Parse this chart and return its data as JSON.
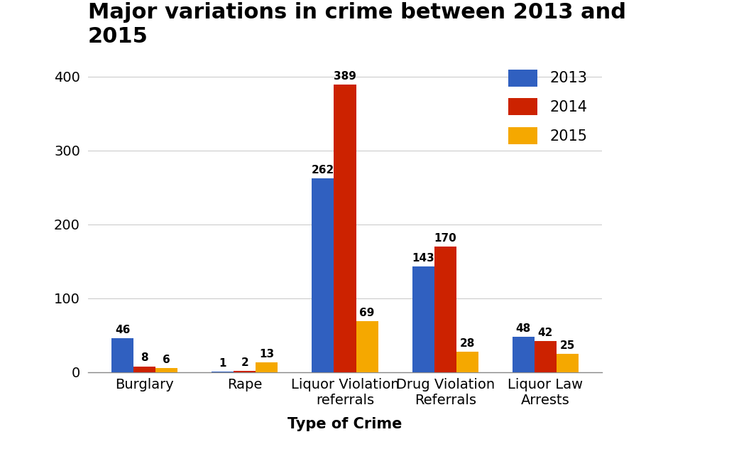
{
  "title": "Major variations in crime between 2013 and\n2015",
  "categories": [
    "Burglary",
    "Rape",
    "Liquor Violation\nreferrals",
    "Drug Violation\nReferrals",
    "Liquor Law\nArrests"
  ],
  "series": {
    "2013": [
      46,
      1,
      262,
      143,
      48
    ],
    "2014": [
      8,
      2,
      389,
      170,
      42
    ],
    "2015": [
      6,
      13,
      69,
      28,
      25
    ]
  },
  "colors": {
    "2013": "#3060c0",
    "2014": "#cc2200",
    "2015": "#f5a800"
  },
  "xlabel": "Type of Crime",
  "ylabel": "",
  "ylim": [
    0,
    430
  ],
  "yticks": [
    0,
    100,
    200,
    300,
    400
  ],
  "legend_labels": [
    "2013",
    "2014",
    "2015"
  ],
  "bar_width": 0.22,
  "title_fontsize": 22,
  "label_fontsize": 15,
  "tick_fontsize": 14,
  "legend_fontsize": 15,
  "value_fontsize": 11,
  "background_color": "#ffffff"
}
